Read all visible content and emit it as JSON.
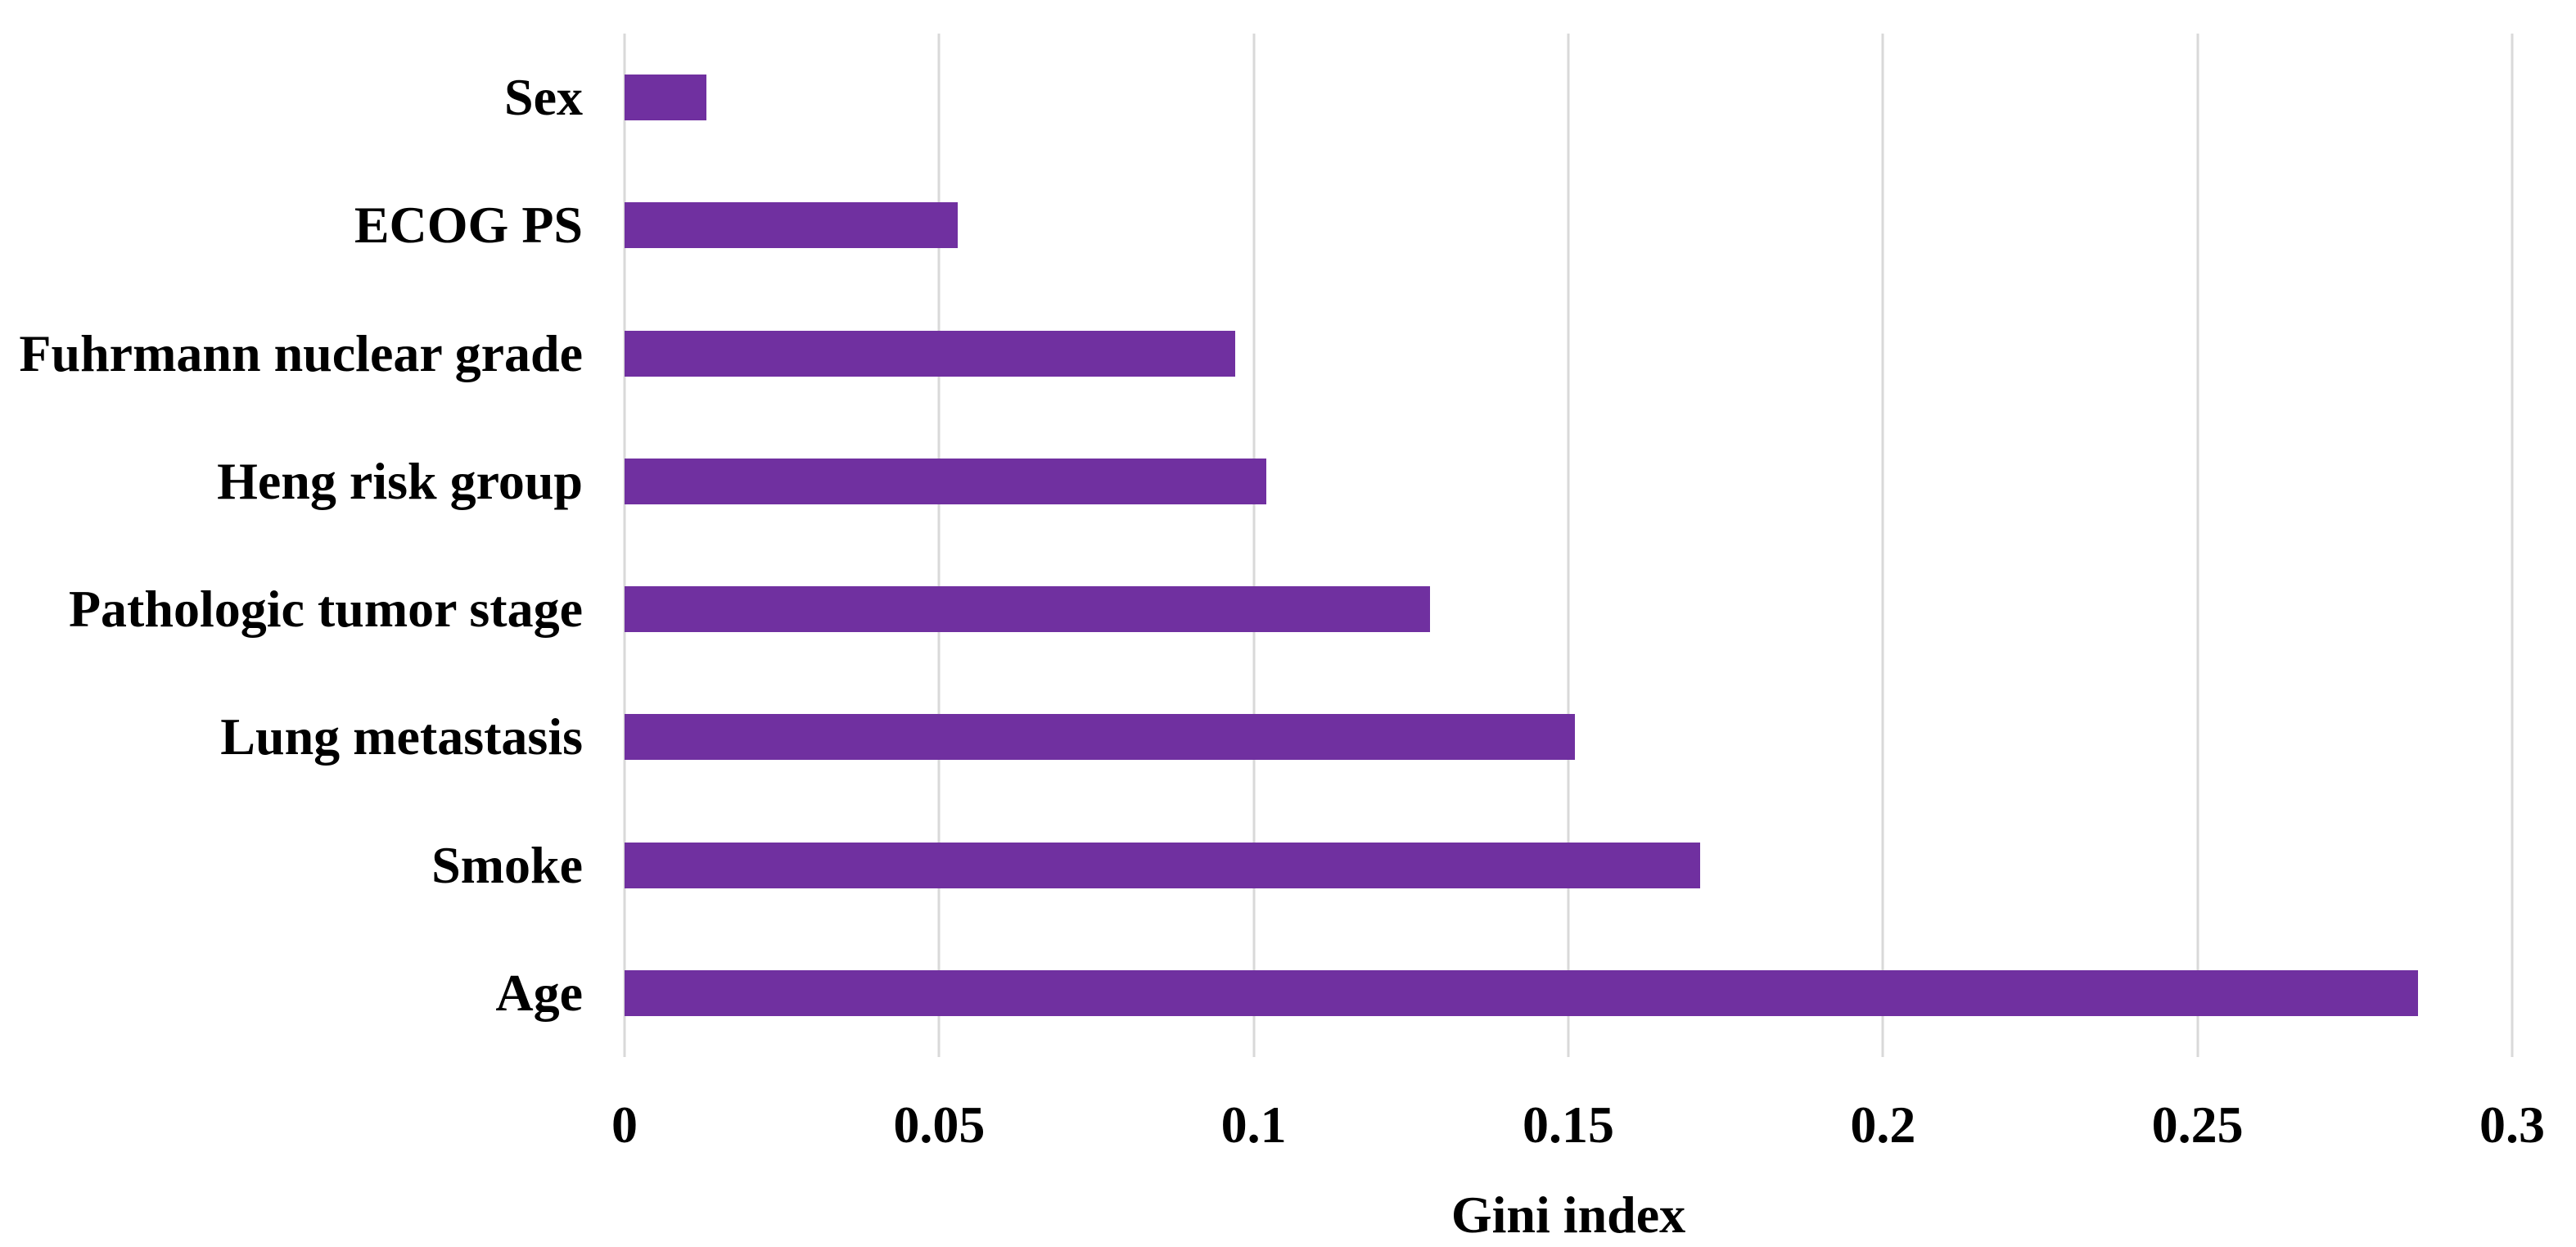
{
  "chart_data": {
    "type": "bar",
    "orientation": "horizontal",
    "title": "",
    "xlabel": "Gini index",
    "ylabel": "",
    "categories": [
      "Sex",
      "ECOG PS",
      "Fuhrmann nuclear grade",
      "Heng risk group",
      "Pathologic tumor stage",
      "Lung metastasis",
      "Smoke",
      "Age"
    ],
    "values": [
      0.013,
      0.053,
      0.097,
      0.102,
      0.128,
      0.151,
      0.171,
      0.285
    ],
    "xlim": [
      0,
      0.3
    ],
    "x_ticks": [
      0,
      0.05,
      0.1,
      0.15,
      0.2,
      0.25,
      0.3
    ],
    "x_tick_labels": [
      "0",
      "0.05",
      "0.1",
      "0.15",
      "0.2",
      "0.25",
      "0.3"
    ],
    "grid": "vertical-gridlines-on",
    "legend": "none",
    "colors": {
      "bar": "#7030A0",
      "gridline": "#D9D9D9",
      "text": "#000000",
      "background": "#FFFFFF"
    }
  }
}
